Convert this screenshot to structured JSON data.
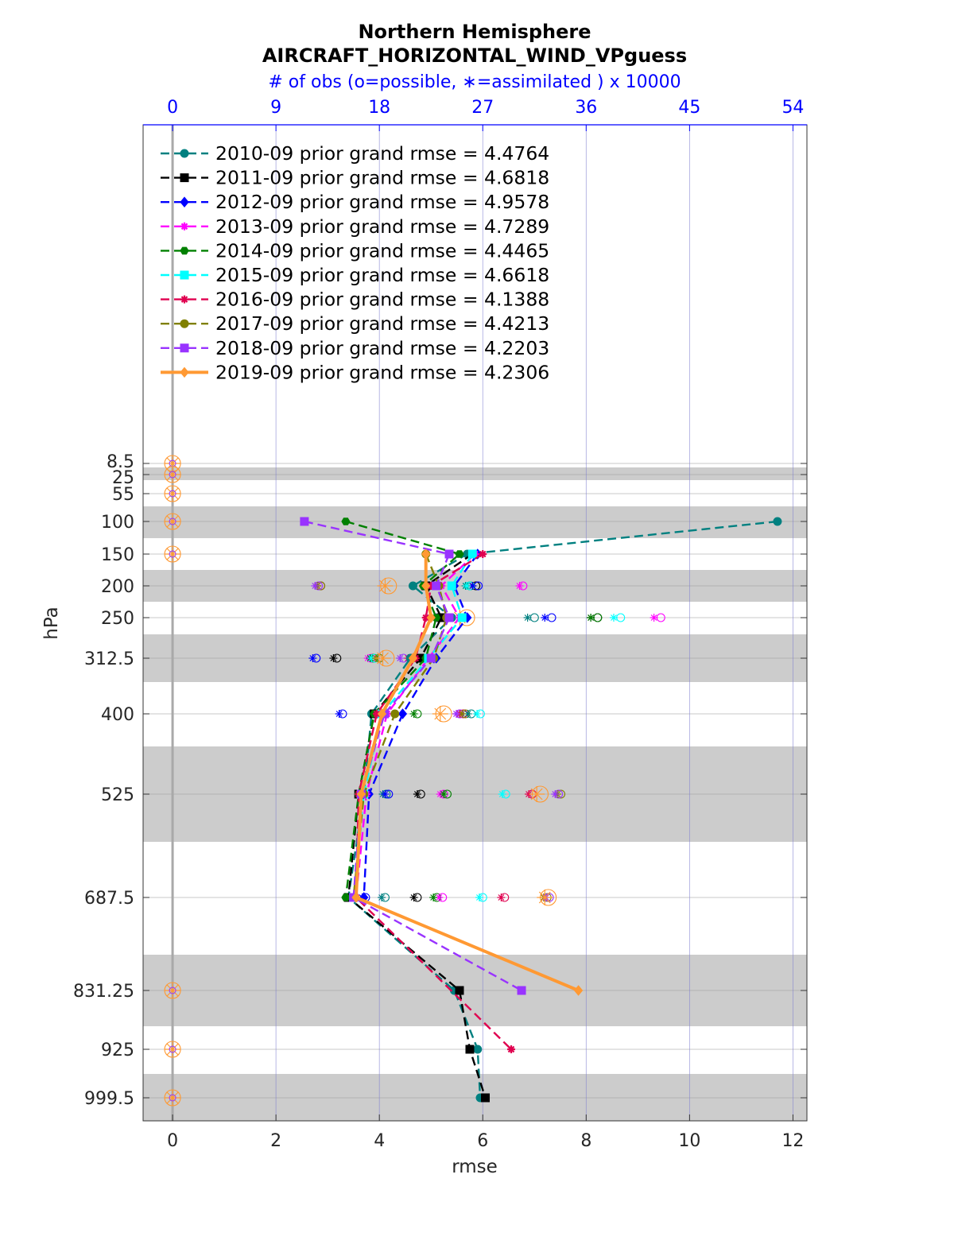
{
  "chart_data": {
    "type": "line",
    "title": "Northern Hemisphere",
    "subtitle": "AIRCRAFT_HORIZONTAL_WIND_VPguess",
    "top_axis_label": "# of obs (o=possible, ∗=assimilated ) x 10000",
    "top_axis_ticks": [
      "0",
      "9",
      "18",
      "27",
      "36",
      "45",
      "54"
    ],
    "top_axis_range": [
      0,
      54
    ],
    "xlabel": "rmse",
    "ylabel": "hPa",
    "xlim": [
      -0.57,
      12.27
    ],
    "x_ticks": [
      "0",
      "2",
      "4",
      "6",
      "8",
      "10",
      "12"
    ],
    "levels": [
      "8.5",
      "25",
      "55",
      "100",
      "150",
      "200",
      "250",
      "312.5",
      "400",
      "525",
      "687.5",
      "831.25",
      "925",
      "999.5"
    ],
    "grid": true,
    "legend_position": "top-left",
    "series": [
      {
        "name": "2010-09",
        "legend": "2010-09 prior grand rmse = 4.4764",
        "color": "#008080",
        "dash": true,
        "marker": "circle",
        "values": [
          null,
          null,
          null,
          11.7,
          5.7,
          4.65,
          5.4,
          4.6,
          3.85,
          3.7,
          3.4,
          5.45,
          5.9,
          5.95
        ]
      },
      {
        "name": "2011-09",
        "legend": "2011-09 prior grand rmse = 4.6818",
        "color": "#000000",
        "dash": true,
        "marker": "square",
        "values": [
          null,
          null,
          null,
          null,
          5.8,
          4.9,
          5.2,
          4.8,
          3.9,
          3.6,
          3.4,
          5.55,
          5.75,
          6.05
        ]
      },
      {
        "name": "2012-09",
        "legend": "2012-09 prior grand rmse = 4.9578",
        "color": "#0000ff",
        "dash": true,
        "marker": "diamond",
        "values": [
          null,
          null,
          null,
          null,
          5.9,
          5.45,
          5.7,
          5.1,
          4.45,
          3.8,
          3.7,
          null,
          null,
          null
        ]
      },
      {
        "name": "2013-09",
        "legend": "2013-09 prior grand rmse = 4.7289",
        "color": "#ff00ff",
        "dash": true,
        "marker": "star",
        "values": [
          null,
          null,
          null,
          null,
          5.85,
          5.2,
          5.55,
          4.95,
          4.15,
          3.75,
          3.55,
          null,
          null,
          null
        ]
      },
      {
        "name": "2014-09",
        "legend": "2014-09 prior grand rmse = 4.4465",
        "color": "#008000",
        "dash": true,
        "marker": "hexagon",
        "values": [
          null,
          null,
          null,
          3.35,
          5.55,
          4.85,
          5.1,
          4.9,
          3.9,
          3.6,
          3.35,
          null,
          null,
          null
        ]
      },
      {
        "name": "2015-09",
        "legend": "2015-09 prior grand rmse = 4.6618",
        "color": "#00ffff",
        "dash": true,
        "marker": "square",
        "values": [
          null,
          null,
          null,
          null,
          5.8,
          5.4,
          5.6,
          4.95,
          4.05,
          3.7,
          3.5,
          null,
          null,
          null
        ]
      },
      {
        "name": "2016-09",
        "legend": "2016-09 prior grand rmse = 4.1388",
        "color": "#e0004f",
        "dash": true,
        "marker": "star",
        "values": [
          null,
          null,
          null,
          null,
          6.0,
          5.0,
          4.9,
          4.7,
          3.95,
          3.6,
          3.55,
          null,
          6.55,
          null
        ]
      },
      {
        "name": "2017-09",
        "legend": "2017-09 prior grand rmse = 4.4213",
        "color": "#808000",
        "dash": true,
        "marker": "circle",
        "values": [
          null,
          null,
          null,
          null,
          4.9,
          5.15,
          5.3,
          5.05,
          4.3,
          3.7,
          3.5,
          null,
          null,
          null
        ]
      },
      {
        "name": "2018-09",
        "legend": "2018-09 prior grand rmse = 4.2203",
        "color": "#9933ff",
        "dash": true,
        "marker": "square",
        "values": [
          null,
          null,
          null,
          2.55,
          5.35,
          5.1,
          5.35,
          5.0,
          4.1,
          3.65,
          3.5,
          6.75,
          null,
          null
        ]
      },
      {
        "name": "2019-09",
        "legend": "2019-09 prior grand rmse = 4.2306",
        "color": "#ff9933",
        "dash": false,
        "marker": "diamond",
        "values": [
          null,
          null,
          null,
          null,
          4.9,
          4.9,
          5.0,
          4.65,
          4.05,
          3.65,
          3.55,
          7.85,
          null,
          null
        ]
      }
    ],
    "obs_counts": {
      "units": "x 10000",
      "by_level": [
        {
          "level": "200",
          "possible": [
            [
              "2010-09",
              25.9
            ],
            [
              "2011-09",
              26.4
            ],
            [
              "2012-09",
              26.6
            ],
            [
              "2013-09",
              30.5
            ],
            [
              "2014-09",
              25.9
            ],
            [
              "2015-09",
              25.9
            ],
            [
              "2016-09",
              12.9
            ],
            [
              "2017-09",
              12.9
            ],
            [
              "2018-09",
              12.7
            ],
            [
              "2019-09",
              18.8
            ]
          ],
          "assimilated": [
            [
              "2010-09",
              25.5
            ],
            [
              "2011-09",
              26.1
            ],
            [
              "2012-09",
              26.1
            ],
            [
              "2013-09",
              30.2
            ],
            [
              "2014-09",
              25.6
            ],
            [
              "2015-09",
              25.6
            ],
            [
              "2016-09",
              12.6
            ],
            [
              "2017-09",
              12.6
            ],
            [
              "2018-09",
              12.4
            ],
            [
              "2019-09",
              18.5
            ]
          ]
        },
        {
          "level": "250",
          "possible": [
            [
              "2010-09",
              31.5
            ],
            [
              "2011-09",
              37.0
            ],
            [
              "2012-09",
              33.0
            ],
            [
              "2013-09",
              42.5
            ],
            [
              "2014-09",
              37.0
            ],
            [
              "2015-09",
              39.0
            ],
            [
              "2016-09",
              23.0
            ],
            [
              "2017-09",
              23.0
            ],
            [
              "2018-09",
              23.0
            ],
            [
              "2019-09",
              25.6
            ]
          ],
          "assimilated": [
            [
              "2010-09",
              30.9
            ],
            [
              "2011-09",
              36.4
            ],
            [
              "2012-09",
              32.4
            ],
            [
              "2013-09",
              41.9
            ],
            [
              "2014-09",
              36.4
            ],
            [
              "2015-09",
              38.4
            ],
            [
              "2016-09",
              22.4
            ],
            [
              "2017-09",
              22.4
            ],
            [
              "2018-09",
              22.4
            ],
            [
              "2019-09",
              25.0
            ]
          ]
        },
        {
          "level": "312.5",
          "possible": [
            [
              "2010-09",
              21.3
            ],
            [
              "2011-09",
              14.3
            ],
            [
              "2012-09",
              12.5
            ],
            [
              "2013-09",
              17.3
            ],
            [
              "2014-09",
              17.5
            ],
            [
              "2015-09",
              17.6
            ],
            [
              "2016-09",
              20.8
            ],
            [
              "2017-09",
              18.0
            ],
            [
              "2018-09",
              20.1
            ],
            [
              "2019-09",
              18.6
            ]
          ],
          "assimilated": [
            [
              "2010-09",
              21.0
            ],
            [
              "2011-09",
              14.0
            ],
            [
              "2012-09",
              12.2
            ],
            [
              "2013-09",
              17.0
            ],
            [
              "2014-09",
              17.2
            ],
            [
              "2015-09",
              17.3
            ],
            [
              "2016-09",
              20.5
            ],
            [
              "2017-09",
              17.7
            ],
            [
              "2018-09",
              19.8
            ],
            [
              "2019-09",
              18.3
            ]
          ]
        },
        {
          "level": "400",
          "possible": [
            [
              "2010-09",
              26.0
            ],
            [
              "2011-09",
              18.0
            ],
            [
              "2012-09",
              14.8
            ],
            [
              "2013-09",
              25.0
            ],
            [
              "2014-09",
              21.3
            ],
            [
              "2015-09",
              26.8
            ],
            [
              "2016-09",
              25.3
            ],
            [
              "2017-09",
              25.5
            ],
            [
              "2018-09",
              25.0
            ],
            [
              "2019-09",
              23.6
            ]
          ],
          "assimilated": [
            [
              "2010-09",
              25.7
            ],
            [
              "2011-09",
              17.7
            ],
            [
              "2012-09",
              14.5
            ],
            [
              "2013-09",
              24.7
            ],
            [
              "2014-09",
              21.0
            ],
            [
              "2015-09",
              26.5
            ],
            [
              "2016-09",
              25.0
            ],
            [
              "2017-09",
              25.2
            ],
            [
              "2018-09",
              24.7
            ],
            [
              "2019-09",
              23.3
            ]
          ]
        },
        {
          "level": "525",
          "possible": [
            [
              "2010-09",
              18.6
            ],
            [
              "2011-09",
              21.6
            ],
            [
              "2012-09",
              18.8
            ],
            [
              "2013-09",
              23.6
            ],
            [
              "2014-09",
              23.9
            ],
            [
              "2015-09",
              29.0
            ],
            [
              "2016-09",
              31.3
            ],
            [
              "2017-09",
              33.8
            ],
            [
              "2018-09",
              33.6
            ],
            [
              "2019-09",
              32.0
            ]
          ],
          "assimilated": [
            [
              "2010-09",
              18.3
            ],
            [
              "2011-09",
              21.3
            ],
            [
              "2012-09",
              18.5
            ],
            [
              "2013-09",
              23.3
            ],
            [
              "2014-09",
              23.6
            ],
            [
              "2015-09",
              28.7
            ],
            [
              "2016-09",
              31.0
            ],
            [
              "2017-09",
              33.5
            ],
            [
              "2018-09",
              33.3
            ],
            [
              "2019-09",
              31.7
            ]
          ]
        },
        {
          "level": "687.5",
          "possible": [
            [
              "2010-09",
              18.5
            ],
            [
              "2011-09",
              21.3
            ],
            [
              "2012-09",
              16.8
            ],
            [
              "2013-09",
              23.5
            ],
            [
              "2014-09",
              23.0
            ],
            [
              "2015-09",
              27.0
            ],
            [
              "2016-09",
              28.9
            ],
            [
              "2017-09",
              32.6
            ],
            [
              "2018-09",
              32.8
            ],
            [
              "2019-09",
              32.7
            ]
          ],
          "assimilated": [
            [
              "2010-09",
              18.2
            ],
            [
              "2011-09",
              21.0
            ],
            [
              "2012-09",
              16.5
            ],
            [
              "2013-09",
              23.2
            ],
            [
              "2014-09",
              22.7
            ],
            [
              "2015-09",
              26.7
            ],
            [
              "2016-09",
              28.6
            ],
            [
              "2017-09",
              32.3
            ],
            [
              "2018-09",
              32.5
            ],
            [
              "2019-09",
              32.4
            ]
          ]
        }
      ],
      "zero_levels": [
        "8.5",
        "25",
        "55",
        "100",
        "150",
        "831.25",
        "925",
        "999.5"
      ]
    }
  }
}
